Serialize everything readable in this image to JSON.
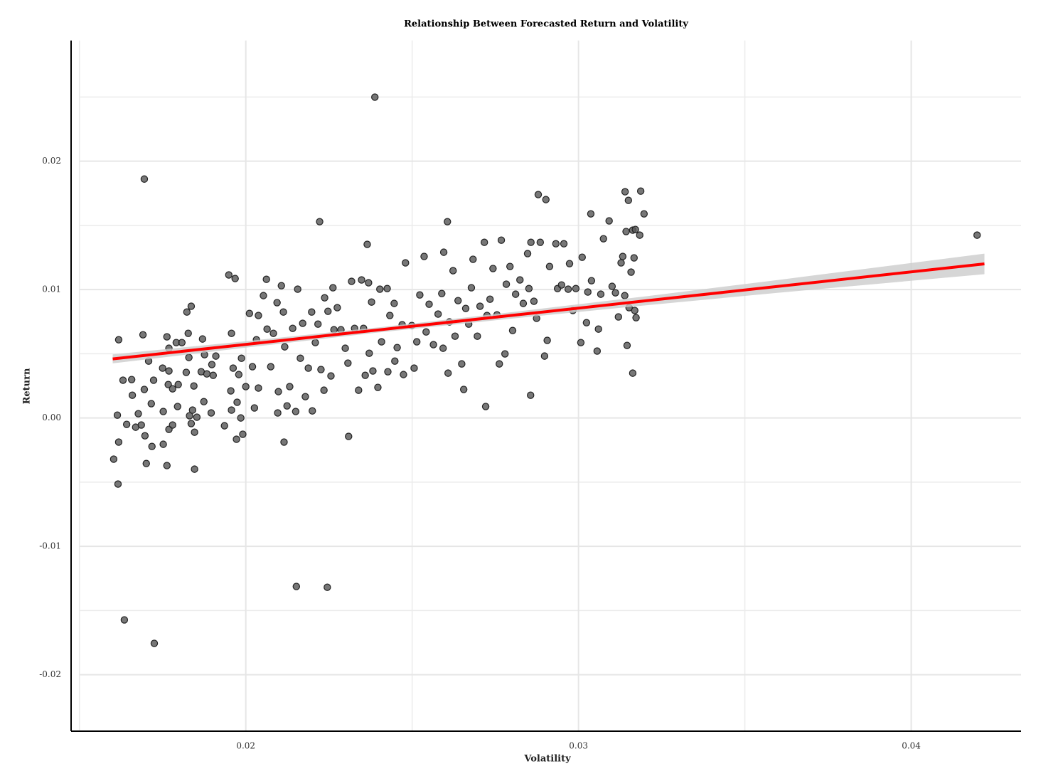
{
  "chart_data": {
    "type": "scatter",
    "title": "Relationship Between Forecasted Return and Volatility",
    "x_label": "Volatility",
    "y_label": "Return",
    "xlim": [
      0.01475,
      0.0433
    ],
    "ylim": [
      -0.0244,
      0.0294
    ],
    "xticks": [
      0.02,
      0.03,
      0.04
    ],
    "yticks": [
      -0.02,
      -0.01,
      {
        "value": 0,
        "label": "0.00"
      },
      0.01,
      0.02
    ],
    "x_minor_ticks": [
      0.015,
      0.025,
      0.035
    ],
    "y_minor_ticks": [
      -0.015,
      -0.005,
      0.005,
      0.015,
      0.025
    ],
    "grid": true,
    "color": "#555555",
    "fit_color": "#ff0000",
    "band_color": "#cccccc",
    "fit": {
      "x": [
        0.016,
        0.02,
        0.024,
        0.028,
        0.032,
        0.036,
        0.0422
      ],
      "y": [
        0.0046,
        0.00573,
        0.00686,
        0.00799,
        0.00912,
        0.01025,
        0.012
      ],
      "lower": [
        0.00425,
        0.00548,
        0.00666,
        0.00774,
        0.00877,
        0.00975,
        0.0112
      ],
      "upper": [
        0.00495,
        0.00598,
        0.00706,
        0.00824,
        0.00947,
        0.01075,
        0.0128
      ]
    },
    "x": [
      0.02388,
      0.01695,
      0.01635,
      0.01725,
      0.02152,
      0.02245,
      0.04198,
      0.01616,
      0.01603,
      0.02222,
      0.02365,
      0.02606,
      0.02309,
      0.02721,
      0.02856,
      0.03163,
      0.03146,
      0.02879,
      0.0314,
      0.03187,
      0.03197,
      0.03037,
      0.01846,
      0.01763,
      0.02115,
      0.01618,
      0.01631,
      0.01657,
      0.01659,
      0.01614,
      0.01618,
      0.01642,
      0.01669,
      0.01677,
      0.01686,
      0.01691,
      0.01695,
      0.01697,
      0.01701,
      0.01708,
      0.01716,
      0.01718,
      0.01723,
      0.0175,
      0.01752,
      0.01752,
      0.01763,
      0.01767,
      0.01769,
      0.01769,
      0.01769,
      0.0178,
      0.0178,
      0.01791,
      0.01795,
      0.01797,
      0.01808,
      0.01821,
      0.01823,
      0.01827,
      0.01829,
      0.01831,
      0.01836,
      0.01836,
      0.0184,
      0.01844,
      0.01846,
      0.01853,
      0.01866,
      0.0187,
      0.01874,
      0.01876,
      0.01883,
      0.01896,
      0.01898,
      0.01902,
      0.0191,
      0.01936,
      0.01949,
      0.01957,
      0.01955,
      0.01957,
      0.01962,
      0.01968,
      0.01972,
      0.01974,
      0.01979,
      0.01985,
      0.01987,
      0.01991,
      0.02,
      0.02011,
      0.0202,
      0.02026,
      0.02032,
      0.02038,
      0.02038,
      0.02053,
      0.02062,
      0.02064,
      0.02075,
      0.02083,
      0.02094,
      0.02096,
      0.02098,
      0.02107,
      0.02113,
      0.02117,
      0.02124,
      0.02132,
      0.02141,
      0.0215,
      0.02156,
      0.02164,
      0.02171,
      0.02179,
      0.02188,
      0.02198,
      0.022,
      0.02209,
      0.02217,
      0.02226,
      0.02235,
      0.02237,
      0.02247,
      0.02256,
      0.02262,
      0.02265,
      0.02275,
      0.02286,
      0.02299,
      0.02307,
      0.02318,
      0.02327,
      0.02339,
      0.02348,
      0.02354,
      0.02359,
      0.02369,
      0.02371,
      0.02378,
      0.02382,
      0.02397,
      0.02403,
      0.02408,
      0.02425,
      0.02427,
      0.02433,
      0.02446,
      0.02448,
      0.02455,
      0.0247,
      0.02474,
      0.0248,
      0.02499,
      0.02506,
      0.02514,
      0.02523,
      0.02536,
      0.02542,
      0.02551,
      0.02564,
      0.02578,
      0.02589,
      0.02593,
      0.02595,
      0.02608,
      0.02612,
      0.02623,
      0.02629,
      0.02638,
      0.02649,
      0.02655,
      0.02661,
      0.0267,
      0.02678,
      0.02683,
      0.02696,
      0.02704,
      0.02717,
      0.02725,
      0.02734,
      0.02743,
      0.02755,
      0.02762,
      0.02768,
      0.02779,
      0.02783,
      0.02794,
      0.02802,
      0.02811,
      0.02824,
      0.02834,
      0.02847,
      0.02851,
      0.02857,
      0.02866,
      0.02874,
      0.02885,
      0.02898,
      0.02902,
      0.02906,
      0.02913,
      0.02932,
      0.02937,
      0.02949,
      0.02956,
      0.02969,
      0.02973,
      0.02983,
      0.02992,
      0.03007,
      0.03011,
      0.03024,
      0.03028,
      0.03039,
      0.03056,
      0.0306,
      0.03067,
      0.03075,
      0.03092,
      0.03101,
      0.03111,
      0.0312,
      0.03128,
      0.03133,
      0.03139,
      0.03143,
      0.0315,
      0.03158,
      0.03163,
      0.03167,
      0.03169,
      0.03171,
      0.03173,
      0.03184,
      0.03152
    ],
    "values": [
      0.02499,
      0.01861,
      -0.01573,
      -0.01756,
      -0.01313,
      -0.01319,
      0.01424,
      -0.00515,
      -0.00321,
      0.01529,
      0.01352,
      0.01529,
      -0.00144,
      0.00089,
      0.00177,
      0.00349,
      0.00565,
      0.0174,
      0.01762,
      0.01767,
      0.0159,
      0.0159,
      -0.00399,
      -0.00371,
      -0.00188,
      0.00609,
      0.00294,
      0.00299,
      0.00177,
      0.00022,
      -0.00188,
      -0.0005,
      -0.00072,
      0.00033,
      -0.00055,
      0.00648,
      0.00222,
      -0.00139,
      -0.00355,
      0.00443,
      0.00111,
      -0.00222,
      0.00294,
      0.00388,
      0.0005,
      -0.00205,
      0.00632,
      0.0026,
      0.00366,
      -0.00089,
      0.00543,
      -0.00055,
      0.00227,
      0.00587,
      0.00089,
      0.0026,
      0.00587,
      0.00355,
      0.00825,
      0.00659,
      0.00471,
      0.00017,
      0.0087,
      -0.00044,
      0.00061,
      0.00249,
      -0.00111,
      6e-05,
      0.0036,
      0.00615,
      0.00127,
      0.00493,
      0.00343,
      0.00039,
      0.00416,
      0.00332,
      0.00482,
      -0.00061,
      0.01114,
      0.00659,
      0.00211,
      0.00061,
      0.00388,
      0.01086,
      -0.00166,
      0.00122,
      0.00338,
      0.0,
      0.00465,
      -0.00127,
      0.00244,
      0.00814,
      0.00399,
      0.00078,
      0.00609,
      0.00798,
      0.00233,
      0.00953,
      0.0108,
      0.00692,
      0.00399,
      0.00659,
      0.00898,
      0.00039,
      0.00205,
      0.0103,
      0.00825,
      0.00554,
      0.00094,
      0.00244,
      0.00698,
      0.0005,
      0.01003,
      0.00465,
      0.00737,
      0.00166,
      0.00388,
      0.00825,
      0.00055,
      0.00587,
      0.00731,
      0.00377,
      0.00216,
      0.00936,
      0.00831,
      0.00327,
      0.01014,
      0.00687,
      0.00859,
      0.00687,
      0.00543,
      0.00427,
      0.01064,
      0.00698,
      0.00216,
      0.01075,
      0.00698,
      0.00332,
      0.01053,
      0.00504,
      0.00903,
      0.00366,
      0.00238,
      0.01003,
      0.00593,
      0.01008,
      0.0036,
      0.00798,
      0.00892,
      0.00443,
      0.00548,
      0.00726,
      0.00338,
      0.01208,
      0.0072,
      0.00388,
      0.00593,
      0.00958,
      0.01258,
      0.0067,
      0.00886,
      0.00571,
      0.00809,
      0.00969,
      0.00543,
      0.01291,
      0.00349,
      0.00748,
      0.01147,
      0.00637,
      0.00914,
      0.00421,
      0.00222,
      0.00853,
      0.00731,
      0.01014,
      0.01236,
      0.00637,
      0.0087,
      0.01368,
      0.00798,
      0.00925,
      0.01164,
      0.00803,
      0.00421,
      0.01385,
      0.00499,
      0.01042,
      0.0118,
      0.00681,
      0.00964,
      0.01075,
      0.00892,
      0.0128,
      0.01008,
      0.01368,
      0.00909,
      0.00776,
      0.01368,
      0.00482,
      0.01701,
      0.00604,
      0.0118,
      0.01357,
      0.01008,
      0.01036,
      0.01357,
      0.01003,
      0.01202,
      0.00837,
      0.01008,
      0.00587,
      0.01252,
      0.00742,
      0.00981,
      0.01069,
      0.00521,
      0.00692,
      0.00964,
      0.01396,
      0.01535,
      0.01025,
      0.00975,
      0.00787,
      0.01208,
      0.01258,
      0.00953,
      0.01452,
      0.01695,
      0.01136,
      0.01463,
      0.01247,
      0.00837,
      0.01468,
      0.00781,
      0.01424,
      0.00859
    ]
  }
}
